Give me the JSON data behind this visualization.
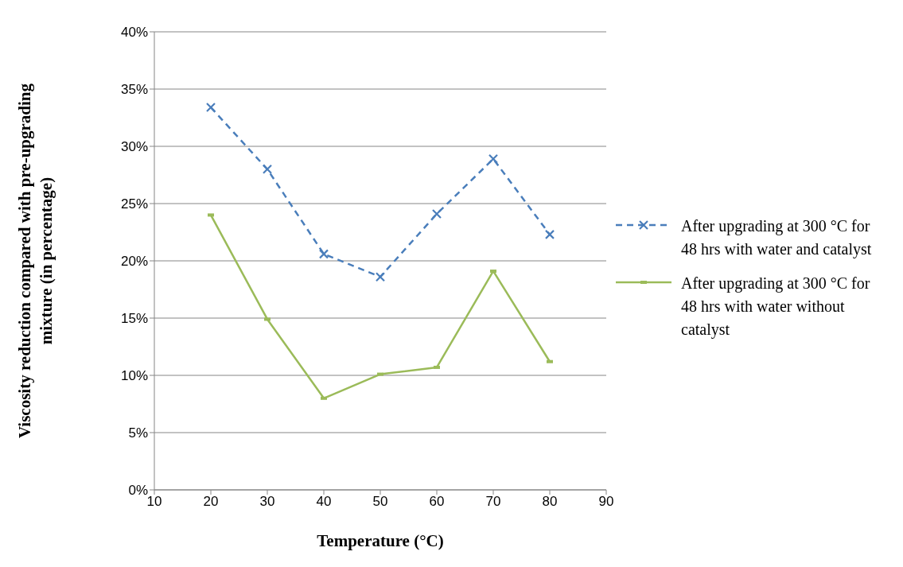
{
  "chart_data": {
    "type": "line",
    "xlabel": "Temperature (°C)",
    "ylabel": "Viscosity reduction compared with pre-upgrading mixture (in percentage)",
    "x": [
      20,
      30,
      40,
      50,
      60,
      70,
      80
    ],
    "series": [
      {
        "name": "After upgrading at 300 °C for 48 hrs with water and catalyst",
        "color": "#4a7ebb",
        "values": [
          33.4,
          28.0,
          20.6,
          18.6,
          24.1,
          28.9,
          22.3
        ],
        "marker": "cross",
        "line_style": "dashed"
      },
      {
        "name": "After upgrading at 300 °C for 48 hrs with water without catalyst",
        "color": "#9bbb59",
        "values": [
          24.0,
          14.9,
          8.0,
          10.1,
          10.7,
          19.1,
          11.2
        ],
        "marker": "square",
        "line_style": "solid"
      }
    ],
    "xlim": [
      10,
      90
    ],
    "xticks": [
      10,
      20,
      30,
      40,
      50,
      60,
      70,
      80,
      90
    ],
    "ylim": [
      0,
      40
    ],
    "yticks": [
      {
        "value": 0,
        "label": "0%"
      },
      {
        "value": 5,
        "label": "5%"
      },
      {
        "value": 10,
        "label": "10%"
      },
      {
        "value": 15,
        "label": "15%"
      },
      {
        "value": 20,
        "label": "20%"
      },
      {
        "value": 25,
        "label": "25%"
      },
      {
        "value": 30,
        "label": "30%"
      },
      {
        "value": 35,
        "label": "35%"
      },
      {
        "value": 40,
        "label": "40%"
      }
    ],
    "grid": "y",
    "legend": "right"
  }
}
